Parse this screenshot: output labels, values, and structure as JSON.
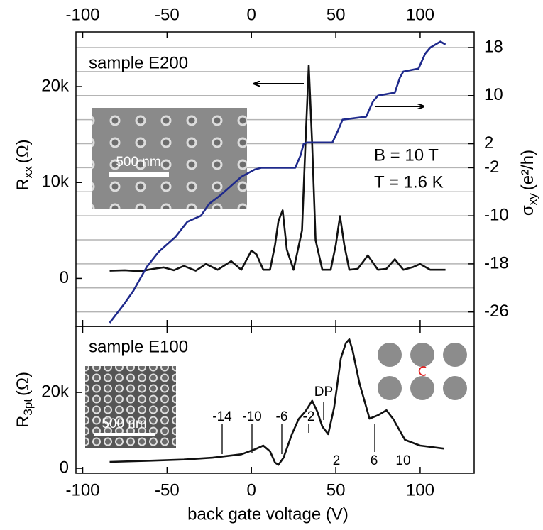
{
  "chart_data": [
    {
      "type": "line",
      "panel_label": "sample E200",
      "annotations": [
        "B = 10 T",
        "T = 1.6 K"
      ],
      "scale_bar": "500 nm",
      "ylabel": {
        "symbol": "R",
        "subscript": "xx",
        "unit": "(Ω)"
      },
      "y2label": {
        "symbol": "σ",
        "subscript": "xy",
        "unit": "(e²/h)"
      },
      "xlim": [
        -104,
        132
      ],
      "xticks": [
        -100,
        -50,
        0,
        50,
        100
      ],
      "ylim": [
        -5000,
        25700
      ],
      "yticks": [
        0,
        {
          "value": 10000,
          "label": "10k"
        },
        {
          "value": 20000,
          "label": "20k"
        }
      ],
      "y2lim": [
        -28.4,
        20.6
      ],
      "y2ticks": [
        18,
        10,
        2,
        -2,
        -10,
        -18,
        -26
      ],
      "y2grid": [
        18,
        14,
        10,
        6,
        2,
        -2,
        -6,
        -10,
        -14,
        -18,
        -22,
        -26
      ],
      "series": [
        {
          "color": "#111111",
          "x": [
            -84,
            -75,
            -66,
            -58,
            -52,
            -46,
            -40,
            -33,
            -27,
            -20,
            -12,
            -6,
            0,
            3,
            7,
            11,
            14,
            16,
            18.5,
            21,
            25,
            30,
            32,
            34,
            36,
            38,
            42,
            47,
            50,
            52.5,
            55,
            58,
            63,
            69,
            75,
            80,
            85,
            90,
            96,
            100,
            106,
            115
          ],
          "values": [
            800,
            850,
            750,
            1000,
            1150,
            850,
            1300,
            800,
            1500,
            900,
            1800,
            900,
            2900,
            2500,
            900,
            900,
            3500,
            6000,
            7100,
            3000,
            900,
            5000,
            14000,
            22200,
            14000,
            4000,
            900,
            900,
            3500,
            6500,
            3500,
            900,
            1000,
            2400,
            900,
            1000,
            2000,
            900,
            1200,
            1500,
            900,
            900
          ]
        },
        {
          "color": "#1f2a8c",
          "axis": "y2",
          "x": [
            -84,
            -75,
            -70,
            -62,
            -55,
            -45,
            -38,
            -30,
            -25,
            -18,
            -12,
            -6,
            2,
            6,
            26,
            29,
            31,
            33,
            48,
            51,
            54,
            68,
            72,
            75,
            85,
            88,
            90,
            99,
            103,
            106,
            112,
            115
          ],
          "values": [
            -27.8,
            -24.5,
            -22.5,
            -18.5,
            -16,
            -13.5,
            -11,
            -10,
            -8,
            -6.5,
            -5,
            -3.5,
            -2.3,
            -2,
            -2,
            0,
            2,
            2.2,
            2.2,
            4,
            6,
            6.5,
            9,
            10,
            10.5,
            13,
            14,
            14.5,
            17,
            18,
            19,
            18.5
          ]
        }
      ]
    },
    {
      "type": "line",
      "panel_label": "sample E100",
      "annotations": [
        "-14",
        "-10",
        "-6",
        "-2",
        "DP",
        "2",
        "6",
        "10"
      ],
      "scale_bar": "500 nm",
      "ylabel": {
        "symbol": "R",
        "subscript": "3pt",
        "unit": "(Ω)"
      },
      "xlabel": "back gate voltage (V)",
      "xlim": [
        -104,
        132
      ],
      "xticks": [
        -100,
        -50,
        0,
        50,
        100
      ],
      "ylim": [
        -1300,
        37400
      ],
      "yticks": [
        0,
        {
          "value": 20000,
          "label": "20k"
        }
      ],
      "series": [
        {
          "color": "#111111",
          "x": [
            -84,
            -60,
            -40,
            -23,
            -6,
            2,
            7,
            11,
            14,
            16,
            19,
            24,
            28,
            32,
            36,
            39,
            42,
            45.5,
            49,
            53,
            56,
            58,
            60,
            64,
            70,
            75,
            80,
            84,
            91,
            100,
            114
          ],
          "values": [
            1700,
            2000,
            2300,
            2800,
            3700,
            5000,
            6000,
            4500,
            1500,
            930,
            2800,
            9000,
            13000,
            15000,
            17800,
            15000,
            11000,
            9000,
            16000,
            29000,
            33000,
            34000,
            31000,
            22400,
            13100,
            14000,
            15300,
            13000,
            7500,
            6000,
            5200
          ]
        }
      ]
    }
  ]
}
